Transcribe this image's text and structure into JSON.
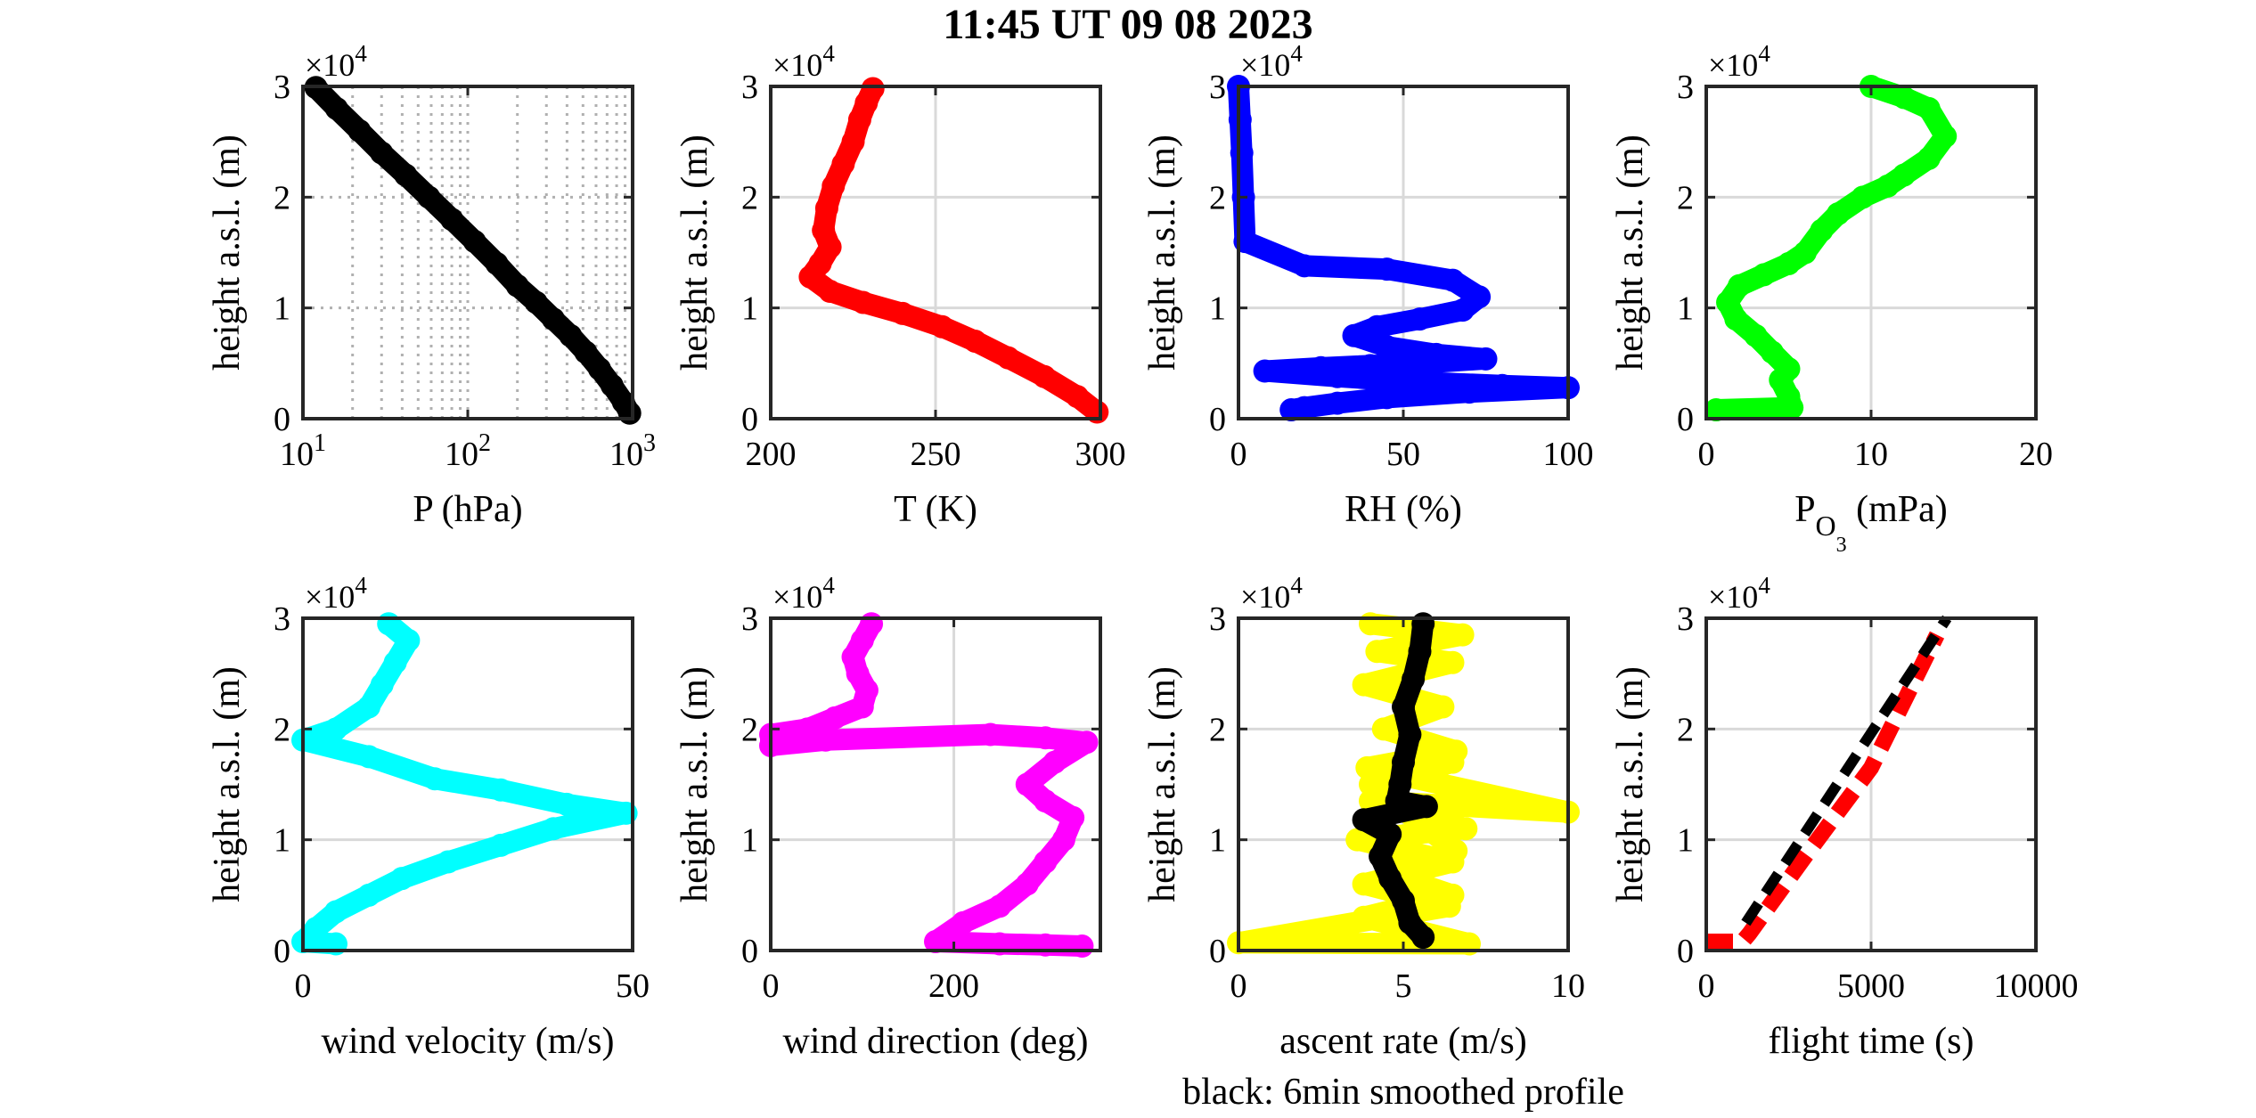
{
  "figure": {
    "title": "11:45 UT  09 08 2023"
  },
  "chart_data": [
    {
      "type": "scatter",
      "panel": "pressure",
      "xlabel": "P (hPa)",
      "ylabel": "height a.s.l. (m)",
      "y_exponent": "×10^4",
      "xscale": "log",
      "xlim": [
        10,
        1000
      ],
      "ylim": [
        0,
        30000
      ],
      "xticks": [
        {
          "v": 10,
          "base": "10",
          "exp": "1"
        },
        {
          "v": 100,
          "base": "10",
          "exp": "2"
        },
        {
          "v": 1000,
          "base": "10",
          "exp": "3"
        }
      ],
      "yticks": [
        {
          "v": 0,
          "label": "0"
        },
        {
          "v": 10000,
          "label": "1"
        },
        {
          "v": 20000,
          "label": "2"
        },
        {
          "v": 30000,
          "label": "3"
        }
      ],
      "grid": "minor-dotted",
      "color": "#000000",
      "series": [
        {
          "x": [
            12,
            16,
            22,
            30,
            42,
            58,
            80,
            110,
            150,
            200,
            260,
            330,
            420,
            520,
            630,
            750,
            880,
            960
          ],
          "y": [
            29900,
            28000,
            26000,
            24000,
            22000,
            20000,
            18000,
            16000,
            14000,
            12000,
            10500,
            9000,
            7500,
            6000,
            4500,
            3000,
            1500,
            500
          ]
        }
      ]
    },
    {
      "type": "scatter",
      "panel": "temperature",
      "xlabel": "T (K)",
      "ylabel": "height a.s.l. (m)",
      "y_exponent": "×10^4",
      "xlim": [
        200,
        300
      ],
      "ylim": [
        0,
        30000
      ],
      "xticks": [
        {
          "v": 200,
          "label": "200"
        },
        {
          "v": 250,
          "label": "250"
        },
        {
          "v": 300,
          "label": "300"
        }
      ],
      "yticks": [
        {
          "v": 0,
          "label": "0"
        },
        {
          "v": 10000,
          "label": "1"
        },
        {
          "v": 20000,
          "label": "2"
        },
        {
          "v": 30000,
          "label": "3"
        }
      ],
      "grid": "major",
      "color": "#ff0000",
      "series": [
        {
          "x": [
            231,
            229,
            227,
            225,
            222,
            219,
            217,
            216,
            218,
            215,
            212,
            218,
            228,
            240,
            252,
            262,
            272,
            283,
            293,
            299
          ],
          "y": [
            29800,
            28500,
            27000,
            25000,
            23000,
            21000,
            19000,
            17000,
            15500,
            14000,
            12800,
            11500,
            10500,
            9500,
            8300,
            7000,
            5500,
            3800,
            2000,
            600
          ]
        }
      ]
    },
    {
      "type": "scatter",
      "panel": "relative-humidity",
      "xlabel": "RH (%)",
      "ylabel": "height a.s.l. (m)",
      "y_exponent": "×10^4",
      "xlim": [
        0,
        100
      ],
      "ylim": [
        0,
        30000
      ],
      "xticks": [
        {
          "v": 0,
          "label": "0"
        },
        {
          "v": 50,
          "label": "50"
        },
        {
          "v": 100,
          "label": "100"
        }
      ],
      "yticks": [
        {
          "v": 0,
          "label": "0"
        },
        {
          "v": 10000,
          "label": "1"
        },
        {
          "v": 20000,
          "label": "2"
        },
        {
          "v": 30000,
          "label": "3"
        }
      ],
      "grid": "major",
      "color": "#0000ff",
      "series": [
        {
          "x": [
            0,
            0.5,
            1,
            1.5,
            2,
            20,
            45,
            65,
            73,
            68,
            55,
            42,
            35,
            45,
            60,
            75,
            55,
            40,
            25,
            8,
            30,
            55,
            80,
            100,
            70,
            45,
            30,
            20,
            16
          ],
          "y": [
            30000,
            27000,
            24000,
            20000,
            16000,
            13800,
            13500,
            12500,
            11000,
            9800,
            9000,
            8300,
            7500,
            6500,
            5800,
            5400,
            5000,
            4800,
            4600,
            4300,
            3800,
            3300,
            3000,
            2800,
            2400,
            1900,
            1400,
            1000,
            800
          ]
        }
      ]
    },
    {
      "type": "scatter",
      "panel": "ozone-partial-pressure",
      "xlabel": "P",
      "xlabel_sub": "O",
      "xlabel_subsub": "3",
      "xlabel_unit": "(mPa)",
      "ylabel": "height a.s.l. (m)",
      "y_exponent": "×10^4",
      "xlim": [
        0,
        20
      ],
      "ylim": [
        0,
        30000
      ],
      "xticks": [
        {
          "v": 0,
          "label": "0"
        },
        {
          "v": 10,
          "label": "10"
        },
        {
          "v": 20,
          "label": "20"
        }
      ],
      "yticks": [
        {
          "v": 0,
          "label": "0"
        },
        {
          "v": 10000,
          "label": "1"
        },
        {
          "v": 20000,
          "label": "2"
        },
        {
          "v": 30000,
          "label": "3"
        }
      ],
      "grid": "major",
      "color": "#00ff00",
      "series": [
        {
          "x": [
            10,
            12,
            13.5,
            14.5,
            13.5,
            12,
            11,
            9.5,
            8,
            7,
            6,
            5,
            3.5,
            2,
            1.3,
            1.8,
            3,
            4,
            5,
            4.5,
            5,
            5.2,
            0.6
          ],
          "y": [
            30000,
            29000,
            28000,
            25500,
            23500,
            22000,
            21000,
            20000,
            18500,
            17000,
            15000,
            14000,
            13000,
            12000,
            10500,
            9000,
            7500,
            6000,
            4500,
            3500,
            2000,
            1000,
            800
          ]
        }
      ]
    },
    {
      "type": "scatter",
      "panel": "wind-velocity",
      "xlabel": "wind velocity (m/s)",
      "ylabel": "height a.s.l. (m)",
      "y_exponent": "×10^4",
      "xlim": [
        0,
        50
      ],
      "ylim": [
        0,
        30000
      ],
      "xticks": [
        {
          "v": 0,
          "label": "0"
        },
        {
          "v": 50,
          "label": "50"
        }
      ],
      "yticks": [
        {
          "v": 0,
          "label": "0"
        },
        {
          "v": 10000,
          "label": "1"
        },
        {
          "v": 20000,
          "label": "2"
        },
        {
          "v": 30000,
          "label": "3"
        }
      ],
      "grid": "major",
      "color": "#00ffff",
      "series": [
        {
          "x": [
            13,
            16,
            14,
            12,
            10,
            5,
            0,
            10,
            20,
            30,
            40,
            49,
            38,
            30,
            22,
            15,
            10,
            5,
            2,
            0,
            5
          ],
          "y": [
            29500,
            28000,
            26000,
            24000,
            22000,
            20000,
            19000,
            17500,
            15500,
            14500,
            13200,
            12400,
            11000,
            9500,
            8000,
            6500,
            5000,
            3500,
            2000,
            800,
            600
          ]
        }
      ]
    },
    {
      "type": "scatter",
      "panel": "wind-direction",
      "xlabel": "wind direction (deg)",
      "ylabel": "height a.s.l. (m)",
      "y_exponent": "×10^4",
      "xlim": [
        0,
        360
      ],
      "ylim": [
        0,
        30000
      ],
      "xticks": [
        {
          "v": 0,
          "label": "0"
        },
        {
          "v": 200,
          "label": "200"
        }
      ],
      "yticks": [
        {
          "v": 0,
          "label": "0"
        },
        {
          "v": 10000,
          "label": "1"
        },
        {
          "v": 20000,
          "label": "2"
        },
        {
          "v": 30000,
          "label": "3"
        }
      ],
      "grid": "major",
      "color": "#ff00ff",
      "series": [
        {
          "x": [
            110,
            100,
            90,
            95,
            105,
            100,
            70,
            40,
            0,
            0,
            60,
            240,
            300,
            345,
            310,
            280,
            300,
            330,
            320,
            300,
            280,
            250,
            210,
            180,
            250,
            300,
            340
          ],
          "y": [
            29500,
            28000,
            26500,
            25000,
            23500,
            22000,
            21000,
            20000,
            19500,
            18500,
            19000,
            19500,
            19200,
            18800,
            17000,
            15000,
            13500,
            12000,
            10000,
            8000,
            6000,
            4000,
            2500,
            800,
            600,
            500,
            400
          ]
        }
      ]
    },
    {
      "type": "scatter",
      "panel": "ascent-rate",
      "xlabel": "ascent rate (m/s)",
      "ylabel": "height a.s.l. (m)",
      "y_exponent": "×10^4",
      "annotation": "black: 6min smoothed profile",
      "xlim": [
        0,
        10
      ],
      "ylim": [
        0,
        30000
      ],
      "xticks": [
        {
          "v": 0,
          "label": "0"
        },
        {
          "v": 5,
          "label": "5"
        },
        {
          "v": 10,
          "label": "10"
        }
      ],
      "yticks": [
        {
          "v": 0,
          "label": "0"
        },
        {
          "v": 10000,
          "label": "1"
        },
        {
          "v": 20000,
          "label": "2"
        },
        {
          "v": 30000,
          "label": "3"
        }
      ],
      "grid": "major",
      "series": [
        {
          "color": "#ffff00",
          "x": [
            4.0,
            6.8,
            4.2,
            6.5,
            3.8,
            6.2,
            4.4,
            6.6,
            3.9,
            10,
            4.0,
            6.9,
            3.6,
            6.5,
            3.8,
            6.4,
            0,
            7,
            3.8,
            6.5,
            4.5,
            6.6,
            4.0,
            6.5
          ],
          "y": [
            29500,
            28500,
            27000,
            26000,
            24000,
            22000,
            20000,
            18000,
            16500,
            12500,
            13500,
            11000,
            10000,
            8000,
            6000,
            4000,
            700,
            600,
            3000,
            5000,
            7000,
            9000,
            15000,
            17000
          ]
        },
        {
          "color": "#000000",
          "x": [
            5.6,
            5.5,
            5.3,
            5.0,
            5.2,
            5.0,
            4.9,
            4.8,
            5.7,
            3.8,
            4.6,
            4.3,
            4.6,
            5.0,
            5.2,
            5.6
          ],
          "y": [
            29500,
            27000,
            24500,
            22000,
            19500,
            17000,
            15000,
            13500,
            13000,
            11800,
            10500,
            8500,
            6500,
            4500,
            2500,
            1200
          ]
        }
      ]
    },
    {
      "type": "line",
      "panel": "flight-time",
      "xlabel": "flight time (s)",
      "ylabel": "height a.s.l. (m)",
      "y_exponent": "×10^4",
      "xlim": [
        0,
        10000
      ],
      "ylim": [
        0,
        30000
      ],
      "xticks": [
        {
          "v": 0,
          "label": "0"
        },
        {
          "v": 5000,
          "label": "5000"
        },
        {
          "v": 10000,
          "label": "10000"
        }
      ],
      "yticks": [
        {
          "v": 0,
          "label": "0"
        },
        {
          "v": 10000,
          "label": "1"
        },
        {
          "v": 20000,
          "label": "2"
        },
        {
          "v": 30000,
          "label": "3"
        }
      ],
      "grid": "major",
      "series": [
        {
          "color": "#ff0000",
          "style": "dashed-thick",
          "x": [
            0,
            1100,
            1300,
            3000,
            5000,
            7000
          ],
          "y": [
            800,
            800,
            1500,
            8500,
            16500,
            28500
          ]
        },
        {
          "color": "#000000",
          "style": "dashed",
          "x": [
            1200,
            7300
          ],
          "y": [
            2500,
            30000
          ]
        }
      ]
    }
  ]
}
